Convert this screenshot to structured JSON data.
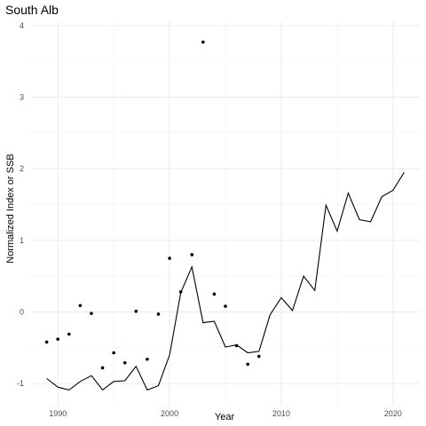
{
  "chart_data": {
    "type": "line",
    "title": "South Alb",
    "xlabel": "Year",
    "ylabel": "Normalized Index or SSB",
    "xlim": [
      1987.6,
      2022.4
    ],
    "ylim": [
      -1.32,
      4.06
    ],
    "x_ticks": [
      1990,
      2000,
      2010,
      2020
    ],
    "y_ticks": [
      -1,
      0,
      1,
      2,
      3,
      4
    ],
    "grid": true,
    "legend": "none",
    "series": [
      {
        "kind": "line",
        "x": [
          1989,
          1990,
          1991,
          1992,
          1993,
          1994,
          1995,
          1996,
          1997,
          1998,
          1999,
          2000,
          2001,
          2002,
          2003,
          2004,
          2005,
          2006,
          2007,
          2008,
          2009,
          2010,
          2011,
          2012,
          2013,
          2014,
          2015,
          2016,
          2017,
          2018,
          2019,
          2020,
          2021
        ],
        "values": [
          -0.93,
          -1.05,
          -1.09,
          -0.97,
          -0.89,
          -1.09,
          -0.97,
          -0.96,
          -0.76,
          -1.09,
          -1.03,
          -0.6,
          0.27,
          0.63,
          -0.15,
          -0.13,
          -0.49,
          -0.46,
          -0.57,
          -0.55,
          -0.04,
          0.2,
          0.02,
          0.5,
          0.3,
          1.49,
          1.13,
          1.66,
          1.29,
          1.26,
          1.61,
          1.7,
          1.95
        ]
      },
      {
        "kind": "points",
        "x": [
          1989,
          1990,
          1991,
          1992,
          1993,
          1994,
          1995,
          1996,
          1997,
          1998,
          1999,
          2000,
          2001,
          2002,
          2003,
          2004,
          2005,
          2006,
          2007,
          2008
        ],
        "values": [
          -0.42,
          -0.38,
          -0.31,
          0.09,
          -0.02,
          -0.78,
          -0.57,
          -0.71,
          0.01,
          -0.66,
          -0.03,
          0.75,
          0.28,
          0.8,
          3.77,
          0.25,
          0.08,
          -0.47,
          -0.73,
          -0.62
        ]
      }
    ]
  }
}
